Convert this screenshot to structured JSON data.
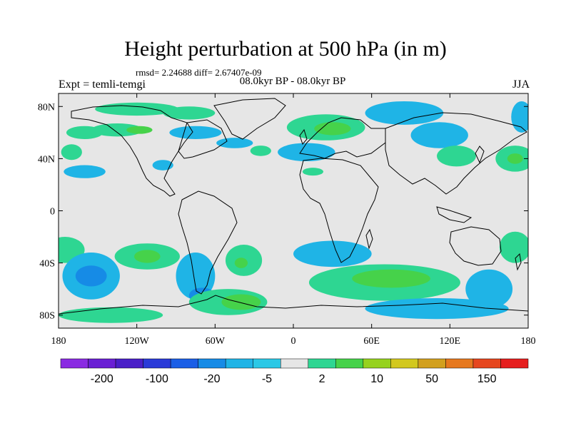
{
  "title": "Height perturbation at 500 hPa (in m)",
  "stats": "rmsd= 2.24688 diff= 2.67407e-09",
  "experiment": "Expt = temli-temgi",
  "period": "08.0kyr BP - 08.0kyr BP",
  "season": "JJA",
  "map": {
    "projection": "cylindrical equidistant",
    "lat_ticks": [
      {
        "lat": 80,
        "label": "80N"
      },
      {
        "lat": 40,
        "label": "40N"
      },
      {
        "lat": 0,
        "label": "0"
      },
      {
        "lat": -40,
        "label": "40S"
      },
      {
        "lat": -80,
        "label": "80S"
      }
    ],
    "lon_ticks": [
      {
        "lon": -180,
        "label": "180"
      },
      {
        "lon": -120,
        "label": "120W"
      },
      {
        "lon": -60,
        "label": "60W"
      },
      {
        "lon": 0,
        "label": "0"
      },
      {
        "lon": 60,
        "label": "60E"
      },
      {
        "lon": 120,
        "label": "120E"
      },
      {
        "lon": 180,
        "label": "180"
      }
    ],
    "fill_color": "#e6e6e6",
    "blobs": [
      {
        "lon": -120,
        "lat": 78,
        "rx": 32,
        "ry": 5,
        "level": "pos_low"
      },
      {
        "lon": -80,
        "lat": 75,
        "rx": 20,
        "ry": 5,
        "level": "pos_low"
      },
      {
        "lon": -135,
        "lat": 62,
        "rx": 20,
        "ry": 5,
        "level": "pos_low"
      },
      {
        "lon": -118,
        "lat": 62,
        "rx": 10,
        "ry": 3,
        "level": "pos_mid"
      },
      {
        "lon": -75,
        "lat": 60,
        "rx": 20,
        "ry": 5,
        "level": "neg_low"
      },
      {
        "lon": -45,
        "lat": 52,
        "rx": 14,
        "ry": 4,
        "level": "neg_low"
      },
      {
        "lon": -160,
        "lat": 60,
        "rx": 14,
        "ry": 5,
        "level": "pos_low"
      },
      {
        "lon": -170,
        "lat": 45,
        "rx": 8,
        "ry": 6,
        "level": "pos_low"
      },
      {
        "lon": -160,
        "lat": 30,
        "rx": 16,
        "ry": 5,
        "level": "neg_low"
      },
      {
        "lon": -100,
        "lat": 35,
        "rx": 8,
        "ry": 4,
        "level": "neg_low"
      },
      {
        "lon": -25,
        "lat": 46,
        "rx": 8,
        "ry": 4,
        "level": "pos_low"
      },
      {
        "lon": 25,
        "lat": 64,
        "rx": 30,
        "ry": 10,
        "level": "pos_low"
      },
      {
        "lon": 30,
        "lat": 63,
        "rx": 14,
        "ry": 5,
        "level": "pos_mid"
      },
      {
        "lon": 10,
        "lat": 45,
        "rx": 22,
        "ry": 7,
        "level": "neg_low"
      },
      {
        "lon": 15,
        "lat": 30,
        "rx": 8,
        "ry": 3,
        "level": "pos_low"
      },
      {
        "lon": 85,
        "lat": 75,
        "rx": 30,
        "ry": 9,
        "level": "neg_low"
      },
      {
        "lon": 112,
        "lat": 58,
        "rx": 22,
        "ry": 10,
        "level": "neg_low"
      },
      {
        "lon": 175,
        "lat": 72,
        "rx": 8,
        "ry": 12,
        "level": "neg_low"
      },
      {
        "lon": 125,
        "lat": 42,
        "rx": 15,
        "ry": 8,
        "level": "pos_low"
      },
      {
        "lon": 170,
        "lat": 40,
        "rx": 15,
        "ry": 10,
        "level": "pos_low"
      },
      {
        "lon": 170,
        "lat": 40,
        "rx": 6,
        "ry": 4,
        "level": "pos_mid"
      },
      {
        "lon": -175,
        "lat": -30,
        "rx": 15,
        "ry": 10,
        "level": "pos_low"
      },
      {
        "lon": -155,
        "lat": -50,
        "rx": 22,
        "ry": 18,
        "level": "neg_low"
      },
      {
        "lon": -155,
        "lat": -50,
        "rx": 12,
        "ry": 8,
        "level": "neg_mid"
      },
      {
        "lon": -112,
        "lat": -35,
        "rx": 25,
        "ry": 10,
        "level": "pos_low"
      },
      {
        "lon": -112,
        "lat": -35,
        "rx": 10,
        "ry": 5,
        "level": "pos_mid"
      },
      {
        "lon": -75,
        "lat": -50,
        "rx": 15,
        "ry": 18,
        "level": "neg_low"
      },
      {
        "lon": -70,
        "lat": -65,
        "rx": 10,
        "ry": 6,
        "level": "neg_mid"
      },
      {
        "lon": -38,
        "lat": -38,
        "rx": 14,
        "ry": 12,
        "level": "pos_low"
      },
      {
        "lon": -40,
        "lat": -40,
        "rx": 5,
        "ry": 4,
        "level": "pos_mid"
      },
      {
        "lon": -140,
        "lat": -80,
        "rx": 40,
        "ry": 6,
        "level": "pos_low"
      },
      {
        "lon": -50,
        "lat": -70,
        "rx": 30,
        "ry": 10,
        "level": "pos_low"
      },
      {
        "lon": -40,
        "lat": -70,
        "rx": 15,
        "ry": 6,
        "level": "pos_mid"
      },
      {
        "lon": 30,
        "lat": -33,
        "rx": 30,
        "ry": 10,
        "level": "neg_low"
      },
      {
        "lon": 70,
        "lat": -55,
        "rx": 58,
        "ry": 14,
        "level": "pos_low"
      },
      {
        "lon": 75,
        "lat": -52,
        "rx": 30,
        "ry": 7,
        "level": "pos_mid"
      },
      {
        "lon": 110,
        "lat": -75,
        "rx": 55,
        "ry": 8,
        "level": "neg_low"
      },
      {
        "lon": 170,
        "lat": -28,
        "rx": 12,
        "ry": 12,
        "level": "pos_low"
      },
      {
        "lon": 150,
        "lat": -60,
        "rx": 18,
        "ry": 15,
        "level": "neg_low"
      }
    ]
  },
  "colorbar": {
    "colors": [
      "#8a2be2",
      "#6a1fd4",
      "#4a1fc8",
      "#2a3ad8",
      "#1a5ee6",
      "#168be6",
      "#1fb4e6",
      "#2ac8e6",
      "#e6e6e6",
      "#2ed692",
      "#46d24a",
      "#96d21e",
      "#d2c81e",
      "#d2a01e",
      "#e6781e",
      "#e6461e",
      "#e61e1e"
    ],
    "labels": [
      "-200",
      "-100",
      "-20",
      "-5",
      "2",
      "10",
      "50",
      "150"
    ]
  },
  "palette": {
    "pos_low": "#2ed692",
    "pos_mid": "#46d24a",
    "neg_low": "#1fb4e6",
    "neg_mid": "#168be6"
  }
}
